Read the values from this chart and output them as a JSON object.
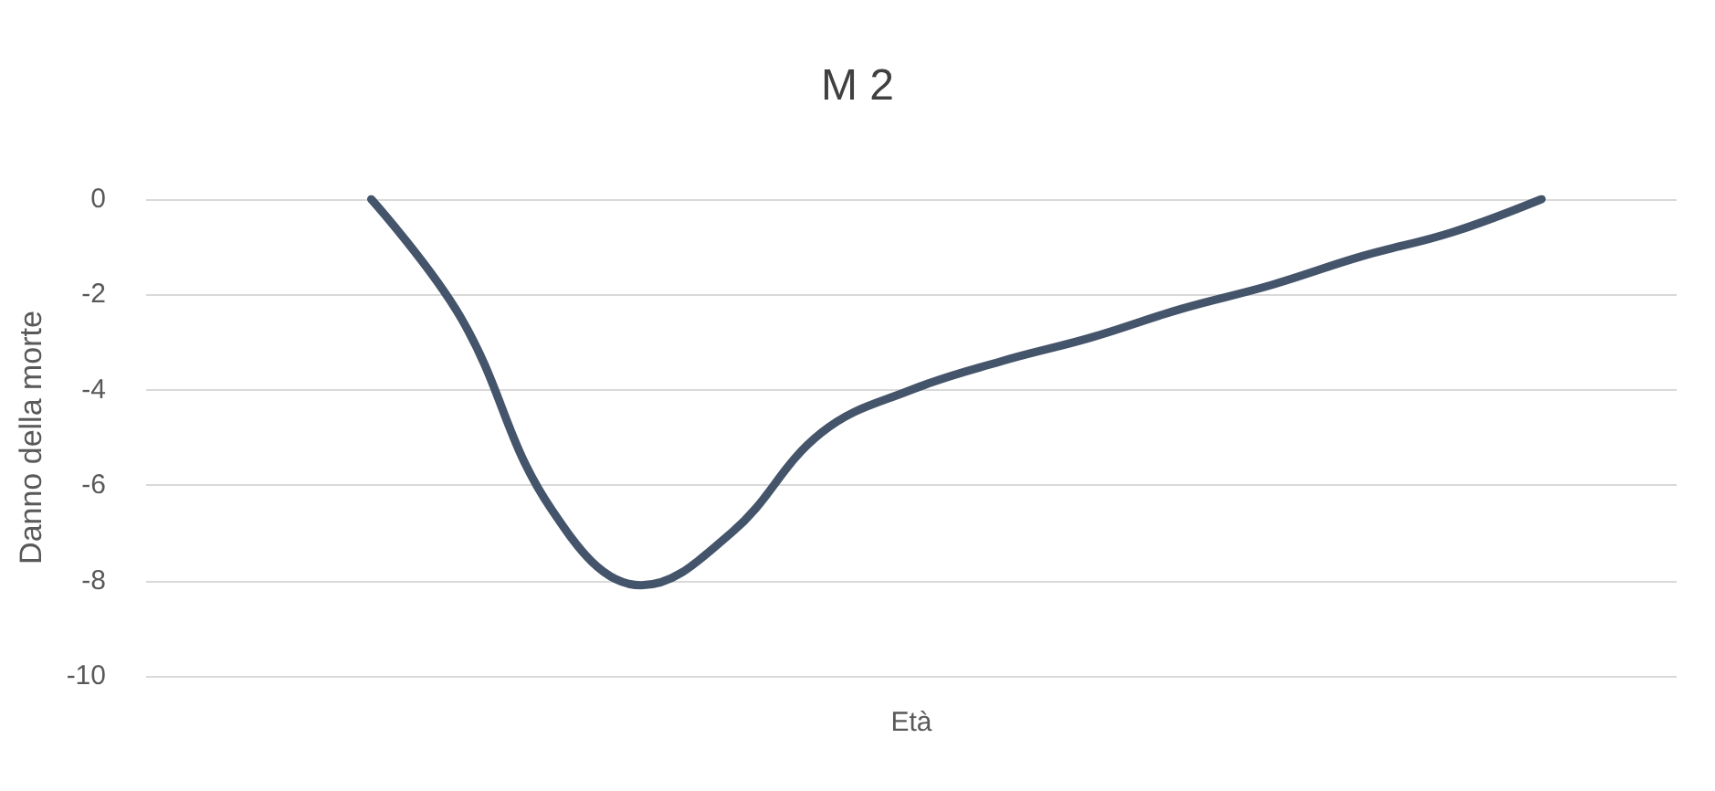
{
  "chart_data": {
    "type": "line",
    "title": "M 2",
    "xlabel": "Età",
    "ylabel": "Danno della morte",
    "categories": [
      null,
      null,
      null,
      null,
      null,
      null,
      null,
      null,
      null,
      null,
      null,
      null,
      null,
      null,
      null,
      null,
      null
    ],
    "series": [
      {
        "color": "#44546a",
        "values": [
          null,
          null,
          0,
          -2.5,
          -6.5,
          -8.1,
          -7.0,
          -4.9,
          -4.0,
          -3.4,
          -2.9,
          -2.3,
          -1.8,
          -1.2,
          -0.7,
          0,
          null
        ]
      }
    ],
    "ylim": [
      -10,
      0
    ],
    "yticks": [
      -10,
      -8,
      -6,
      -4,
      -2,
      0
    ],
    "grid": "y",
    "tick_labels": "y",
    "marker": "none",
    "line_style": "solid"
  }
}
